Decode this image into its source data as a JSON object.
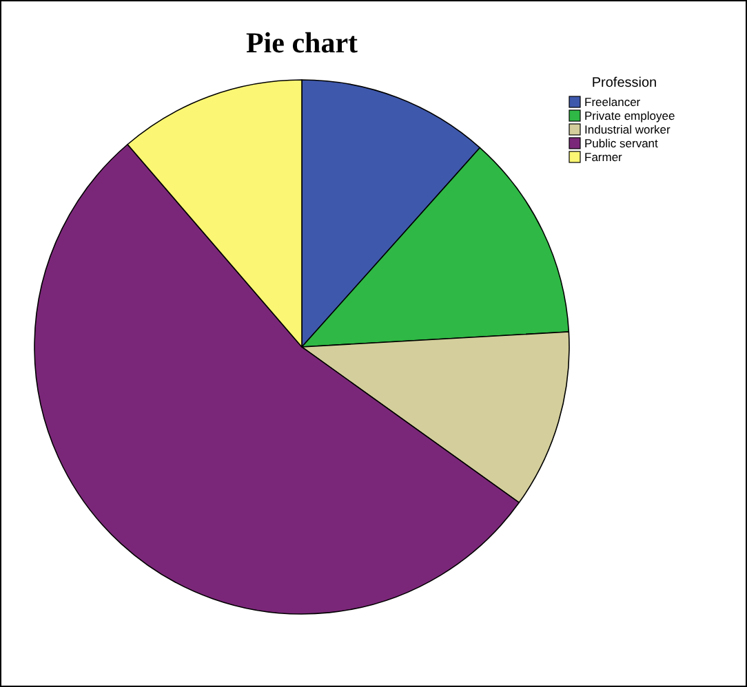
{
  "chart_data": {
    "type": "pie",
    "title": "Pie chart",
    "legend_title": "Profession",
    "legend": "top right",
    "categories": [
      "Freelancer",
      "Private employee",
      "Industrial worker",
      "Public servant",
      "Farmer"
    ],
    "values": [
      11.6,
      12.5,
      10.8,
      53.8,
      11.3
    ],
    "colors": [
      "#3e58ac",
      "#2fb845",
      "#d3ce9b",
      "#7b2779",
      "#fbf673"
    ]
  }
}
